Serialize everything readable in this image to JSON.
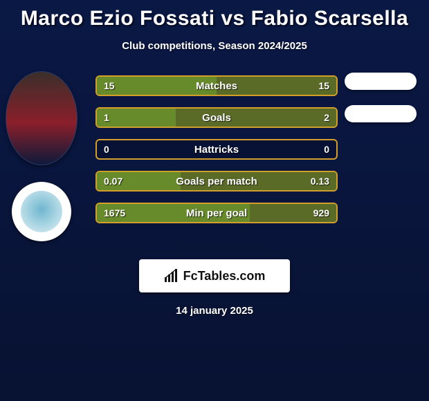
{
  "title": "Marco Ezio Fossati vs Fabio Scarsella",
  "subtitle": "Club competitions, Season 2024/2025",
  "date": "14 january 2025",
  "brand": "FcTables.com",
  "colors": {
    "row_border": "#d2a02a",
    "left_bar": "#678a2a",
    "right_bar": "#5a6b28",
    "bg_top": "#0a1845",
    "bg_bottom": "#081232",
    "text": "#ffffff",
    "pill": "#ffffff",
    "club_left_bg": "#ffffff",
    "club_left_inner": "#6fb6cf",
    "photo_left_bg": "linear-gradient(180deg,#3a2f2a 0%, #8a1f2a 55%, #0e1a3a 100%)"
  },
  "players": {
    "left": {
      "has_photo": true,
      "has_club": true
    },
    "right": {
      "has_photo": false,
      "has_club": false,
      "pill_count": 2
    }
  },
  "rows": [
    {
      "label": "Matches",
      "left_val": "15",
      "right_val": "15",
      "left_pct": 50,
      "right_pct": 50
    },
    {
      "label": "Goals",
      "left_val": "1",
      "right_val": "2",
      "left_pct": 33,
      "right_pct": 67
    },
    {
      "label": "Hattricks",
      "left_val": "0",
      "right_val": "0",
      "left_pct": 0,
      "right_pct": 0
    },
    {
      "label": "Goals per match",
      "left_val": "0.07",
      "right_val": "0.13",
      "left_pct": 35,
      "right_pct": 65
    },
    {
      "label": "Min per goal",
      "left_val": "1675",
      "right_val": "929",
      "left_pct": 64,
      "right_pct": 36
    }
  ],
  "typography": {
    "title_fontsize": 30,
    "subtitle_fontsize": 15,
    "row_label_fontsize": 15,
    "row_value_fontsize": 14,
    "date_fontsize": 15,
    "brand_fontsize": 18
  }
}
